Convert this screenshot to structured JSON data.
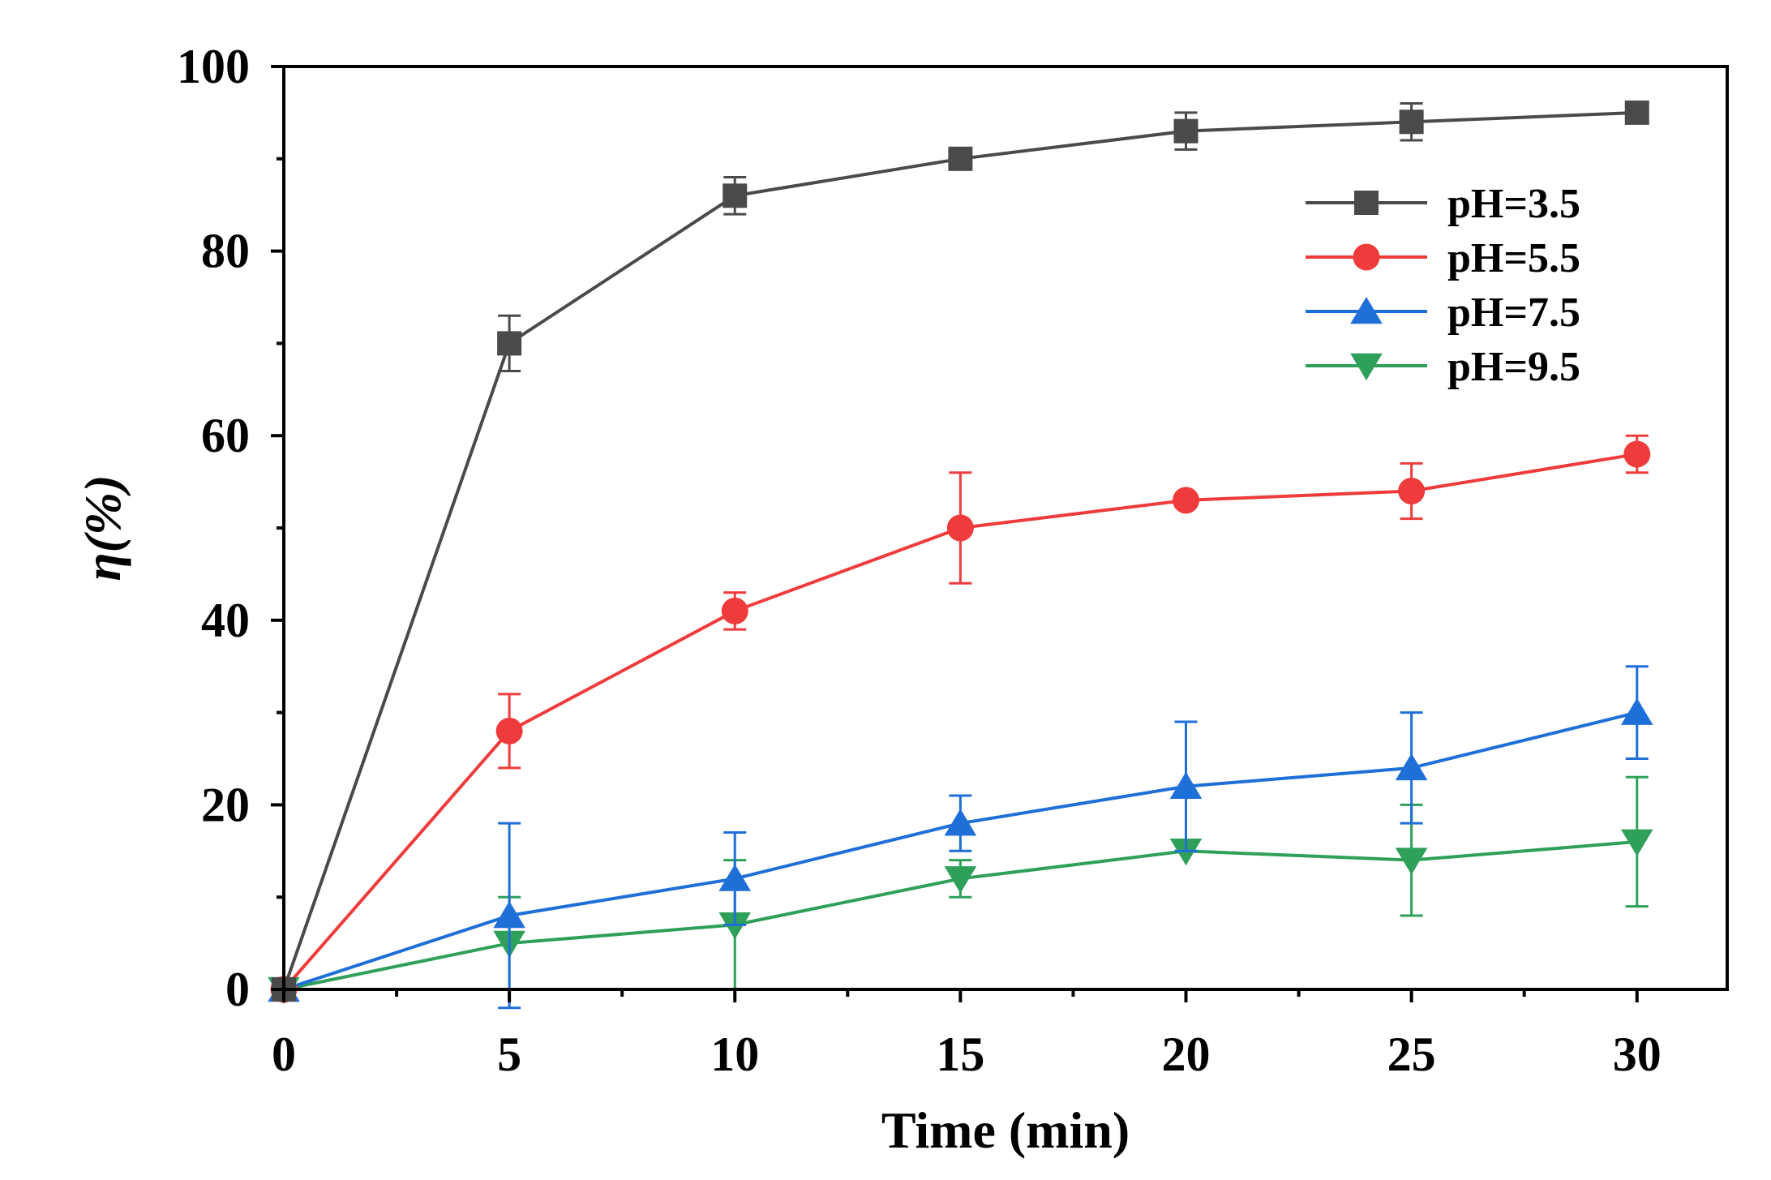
{
  "chart_data": {
    "type": "line",
    "title": "",
    "xlabel": "Time (min)",
    "ylabel": "η(%)",
    "xlim": [
      0,
      32
    ],
    "ylim": [
      0,
      100
    ],
    "xticks": [
      0,
      5,
      10,
      15,
      20,
      25,
      30
    ],
    "yticks": [
      0,
      20,
      40,
      60,
      80,
      100
    ],
    "x": [
      0,
      5,
      10,
      15,
      20,
      25,
      30
    ],
    "grid": false,
    "legend_position": "top-right",
    "series": [
      {
        "name": "pH=3.5",
        "marker": "square",
        "color": "#4a4a4a",
        "values": [
          0,
          70,
          86,
          90,
          93,
          94,
          95
        ],
        "errors": [
          0,
          3,
          2,
          0,
          2,
          2,
          0
        ]
      },
      {
        "name": "pH=5.5",
        "marker": "circle",
        "color": "#ef3b3b",
        "values": [
          0,
          28,
          41,
          50,
          53,
          54,
          58
        ],
        "errors": [
          0,
          4,
          2,
          6,
          0,
          3,
          2
        ]
      },
      {
        "name": "pH=7.5",
        "marker": "triangle-up",
        "color": "#1f6fd8",
        "values": [
          0,
          8,
          12,
          18,
          22,
          24,
          30
        ],
        "errors": [
          0,
          10,
          5,
          3,
          7,
          6,
          5
        ]
      },
      {
        "name": "pH=9.5",
        "marker": "triangle-down",
        "color": "#2ea05a",
        "values": [
          0,
          5,
          7,
          12,
          15,
          14,
          16
        ],
        "errors": [
          0,
          5,
          7,
          2,
          0,
          6,
          7
        ]
      }
    ]
  }
}
